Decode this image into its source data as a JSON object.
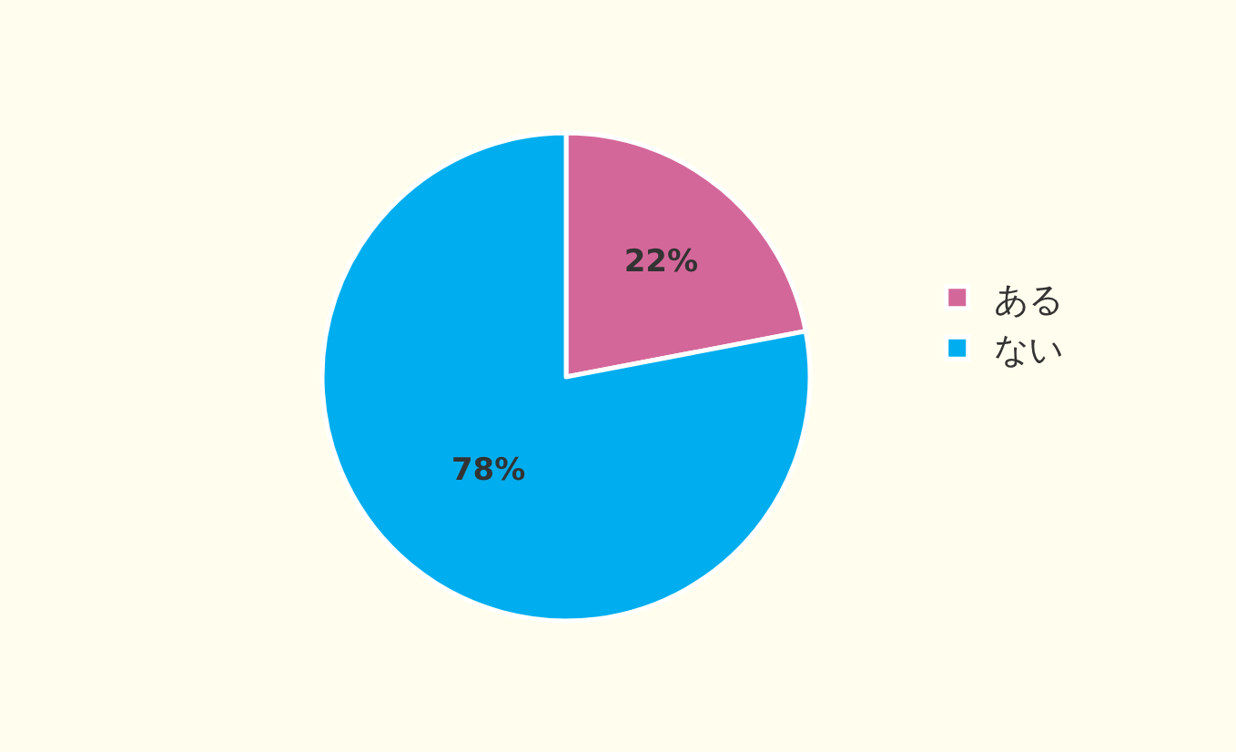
{
  "chart_data": {
    "type": "pie",
    "categories": [
      "ある",
      "ない"
    ],
    "values": [
      22,
      78
    ],
    "colors": [
      "#d4679a",
      "#00aeef"
    ],
    "value_labels": [
      "22%",
      "78%"
    ],
    "legend": "right"
  }
}
